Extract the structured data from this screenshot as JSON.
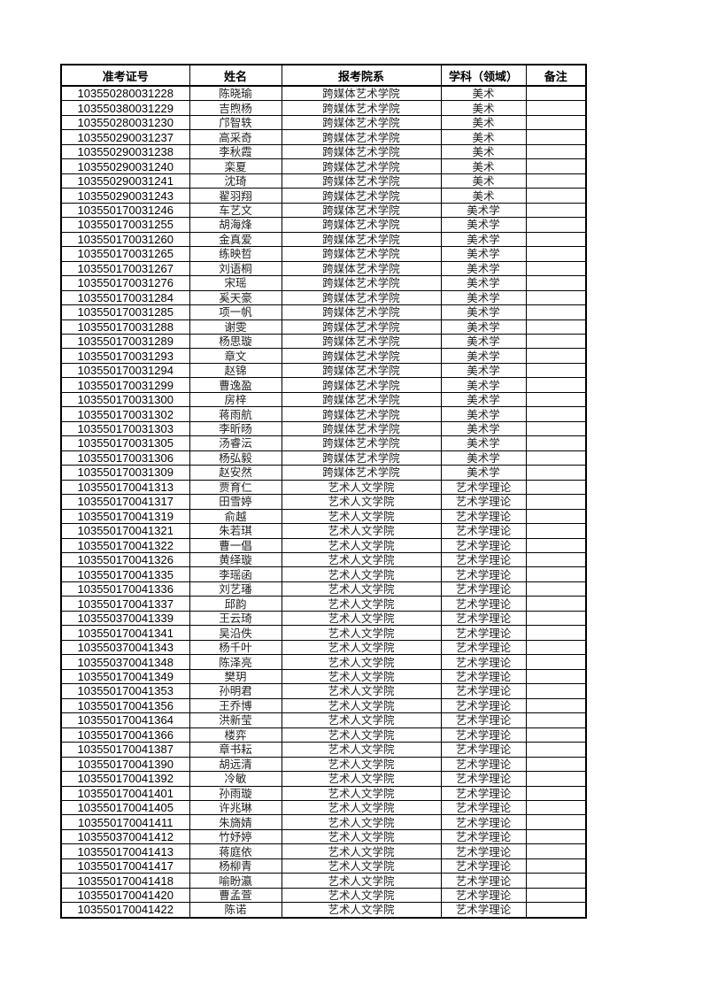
{
  "table": {
    "headers": [
      "准考证号",
      "姓名",
      "报考院系",
      "学科（领域）",
      "备注"
    ],
    "rows": [
      [
        "103550280031228",
        "陈晓瑜",
        "跨媒体艺术学院",
        "美术",
        ""
      ],
      [
        "103550380031229",
        "吉煦杨",
        "跨媒体艺术学院",
        "美术",
        ""
      ],
      [
        "103550280031230",
        "邝智轶",
        "跨媒体艺术学院",
        "美术",
        ""
      ],
      [
        "103550290031237",
        "高采奇",
        "跨媒体艺术学院",
        "美术",
        ""
      ],
      [
        "103550290031238",
        "李秋霞",
        "跨媒体艺术学院",
        "美术",
        ""
      ],
      [
        "103550290031240",
        "栾夏",
        "跨媒体艺术学院",
        "美术",
        ""
      ],
      [
        "103550290031241",
        "沈琦",
        "跨媒体艺术学院",
        "美术",
        ""
      ],
      [
        "103550290031243",
        "翟羽翔",
        "跨媒体艺术学院",
        "美术",
        ""
      ],
      [
        "103550170031246",
        "车艺文",
        "跨媒体艺术学院",
        "美术学",
        ""
      ],
      [
        "103550170031255",
        "胡海烽",
        "跨媒体艺术学院",
        "美术学",
        ""
      ],
      [
        "103550170031260",
        "金真爱",
        "跨媒体艺术学院",
        "美术学",
        ""
      ],
      [
        "103550170031265",
        "练映哲",
        "跨媒体艺术学院",
        "美术学",
        ""
      ],
      [
        "103550170031267",
        "刘语桐",
        "跨媒体艺术学院",
        "美术学",
        ""
      ],
      [
        "103550170031276",
        "宋瑶",
        "跨媒体艺术学院",
        "美术学",
        ""
      ],
      [
        "103550170031284",
        "奚天豪",
        "跨媒体艺术学院",
        "美术学",
        ""
      ],
      [
        "103550170031285",
        "项一帆",
        "跨媒体艺术学院",
        "美术学",
        ""
      ],
      [
        "103550170031288",
        "谢雯",
        "跨媒体艺术学院",
        "美术学",
        ""
      ],
      [
        "103550170031289",
        "杨思璇",
        "跨媒体艺术学院",
        "美术学",
        ""
      ],
      [
        "103550170031293",
        "章文",
        "跨媒体艺术学院",
        "美术学",
        ""
      ],
      [
        "103550170031294",
        "赵锦",
        "跨媒体艺术学院",
        "美术学",
        ""
      ],
      [
        "103550170031299",
        "曹逸盈",
        "跨媒体艺术学院",
        "美术学",
        ""
      ],
      [
        "103550170031300",
        "房梓",
        "跨媒体艺术学院",
        "美术学",
        ""
      ],
      [
        "103550170031302",
        "蒋雨航",
        "跨媒体艺术学院",
        "美术学",
        ""
      ],
      [
        "103550170031303",
        "李昕旸",
        "跨媒体艺术学院",
        "美术学",
        ""
      ],
      [
        "103550170031305",
        "汤睿沄",
        "跨媒体艺术学院",
        "美术学",
        ""
      ],
      [
        "103550170031306",
        "杨弘毅",
        "跨媒体艺术学院",
        "美术学",
        ""
      ],
      [
        "103550170031309",
        "赵安然",
        "跨媒体艺术学院",
        "美术学",
        ""
      ],
      [
        "103550170041313",
        "贾育仁",
        "艺术人文学院",
        "艺术学理论",
        ""
      ],
      [
        "103550170041317",
        "田雪婷",
        "艺术人文学院",
        "艺术学理论",
        ""
      ],
      [
        "103550170041319",
        "俞越",
        "艺术人文学院",
        "艺术学理论",
        ""
      ],
      [
        "103550170041321",
        "朱若琪",
        "艺术人文学院",
        "艺术学理论",
        ""
      ],
      [
        "103550170041322",
        "曹一倡",
        "艺术人文学院",
        "艺术学理论",
        ""
      ],
      [
        "103550170041326",
        "黄绎璇",
        "艺术人文学院",
        "艺术学理论",
        ""
      ],
      [
        "103550170041335",
        "李瑶函",
        "艺术人文学院",
        "艺术学理论",
        ""
      ],
      [
        "103550170041336",
        "刘艺璠",
        "艺术人文学院",
        "艺术学理论",
        ""
      ],
      [
        "103550170041337",
        "邱韵",
        "艺术人文学院",
        "艺术学理论",
        ""
      ],
      [
        "103550370041339",
        "王云琦",
        "艺术人文学院",
        "艺术学理论",
        ""
      ],
      [
        "103550170041341",
        "吴沿佚",
        "艺术人文学院",
        "艺术学理论",
        ""
      ],
      [
        "103550370041343",
        "杨千叶",
        "艺术人文学院",
        "艺术学理论",
        ""
      ],
      [
        "103550370041348",
        "陈泽亮",
        "艺术人文学院",
        "艺术学理论",
        ""
      ],
      [
        "103550170041349",
        "樊玥",
        "艺术人文学院",
        "艺术学理论",
        ""
      ],
      [
        "103550170041353",
        "孙明君",
        "艺术人文学院",
        "艺术学理论",
        ""
      ],
      [
        "103550170041356",
        "王乔博",
        "艺术人文学院",
        "艺术学理论",
        ""
      ],
      [
        "103550170041364",
        "洪新莹",
        "艺术人文学院",
        "艺术学理论",
        ""
      ],
      [
        "103550170041366",
        "楼弈",
        "艺术人文学院",
        "艺术学理论",
        ""
      ],
      [
        "103550170041387",
        "章书耘",
        "艺术人文学院",
        "艺术学理论",
        ""
      ],
      [
        "103550170041390",
        "胡远清",
        "艺术人文学院",
        "艺术学理论",
        ""
      ],
      [
        "103550170041392",
        "冷敏",
        "艺术人文学院",
        "艺术学理论",
        ""
      ],
      [
        "103550170041401",
        "孙雨璇",
        "艺术人文学院",
        "艺术学理论",
        ""
      ],
      [
        "103550170041405",
        "许兆琳",
        "艺术人文学院",
        "艺术学理论",
        ""
      ],
      [
        "103550170041411",
        "朱旖婧",
        "艺术人文学院",
        "艺术学理论",
        ""
      ],
      [
        "103550370041412",
        "竹妤婷",
        "艺术人文学院",
        "艺术学理论",
        ""
      ],
      [
        "103550170041413",
        "蒋庭依",
        "艺术人文学院",
        "艺术学理论",
        ""
      ],
      [
        "103550170041417",
        "杨柳青",
        "艺术人文学院",
        "艺术学理论",
        ""
      ],
      [
        "103550170041418",
        "喻盼瀛",
        "艺术人文学院",
        "艺术学理论",
        ""
      ],
      [
        "103550170041420",
        "曹孟萱",
        "艺术人文学院",
        "艺术学理论",
        ""
      ],
      [
        "103550170041422",
        "陈诺",
        "艺术人文学院",
        "艺术学理论",
        ""
      ]
    ]
  }
}
